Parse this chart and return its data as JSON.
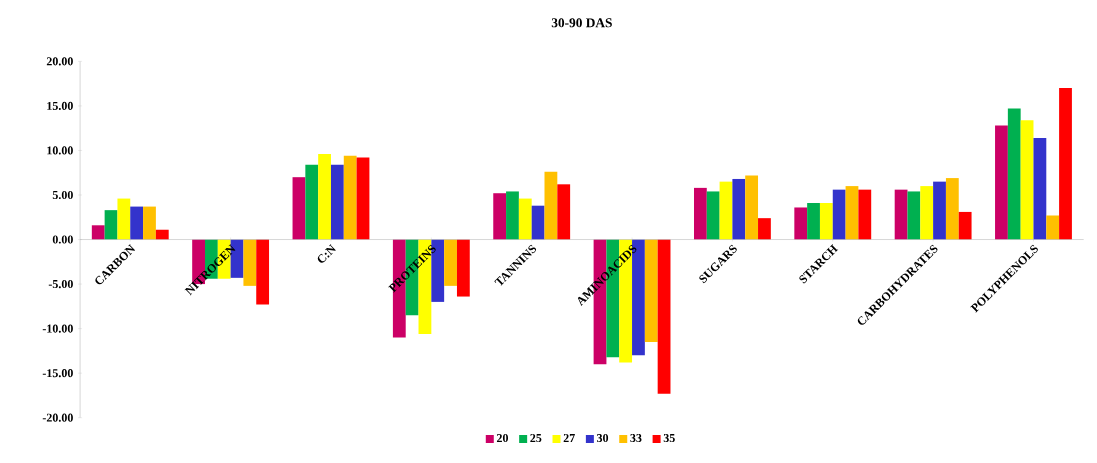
{
  "chart_data": {
    "type": "bar",
    "title": "30-90 DAS",
    "categories": [
      "CARBON",
      "NITROGEN",
      "C:N",
      "PROTEINS",
      "TANNINS",
      "AMINOACIDS",
      "SUGARS",
      "STARCH",
      "CARBOHYDRATES",
      "POLYPHENOLS"
    ],
    "series": [
      {
        "name": "20",
        "color": "#cc0066",
        "values": [
          1.6,
          -5.0,
          7.0,
          -11.0,
          5.2,
          -14.0,
          5.8,
          3.6,
          5.6,
          12.8
        ]
      },
      {
        "name": "25",
        "color": "#00b050",
        "values": [
          3.3,
          -4.4,
          8.4,
          -8.5,
          5.4,
          -13.2,
          5.4,
          4.1,
          5.4,
          14.7
        ]
      },
      {
        "name": "27",
        "color": "#ffff00",
        "values": [
          4.6,
          -4.4,
          9.6,
          -10.6,
          4.6,
          -13.8,
          6.5,
          4.1,
          6.0,
          13.4
        ]
      },
      {
        "name": "30",
        "color": "#3333cc",
        "values": [
          3.7,
          -4.3,
          8.4,
          -7.0,
          3.8,
          -13.0,
          6.8,
          5.6,
          6.5,
          11.4
        ]
      },
      {
        "name": "33",
        "color": "#ffc000",
        "values": [
          3.7,
          -5.2,
          9.4,
          -5.2,
          7.6,
          -11.5,
          7.2,
          6.0,
          6.9,
          2.7
        ]
      },
      {
        "name": "35",
        "color": "#ff0000",
        "values": [
          1.1,
          -7.3,
          9.2,
          -6.4,
          6.2,
          -17.3,
          2.4,
          5.6,
          3.1,
          17.0
        ]
      }
    ],
    "ylim": [
      -20,
      20
    ],
    "yticks": [
      {
        "value": -20,
        "label": "-20.00"
      },
      {
        "value": -15,
        "label": "-15.00"
      },
      {
        "value": -10,
        "label": "-10.00"
      },
      {
        "value": -5,
        "label": "-5.00"
      },
      {
        "value": 0,
        "label": "0.00"
      },
      {
        "value": 5,
        "label": "5.00"
      },
      {
        "value": 10,
        "label": "10.00"
      },
      {
        "value": 15,
        "label": "15.00"
      },
      {
        "value": 20,
        "label": "20.00"
      }
    ],
    "grid": false,
    "legend": "bottom"
  }
}
